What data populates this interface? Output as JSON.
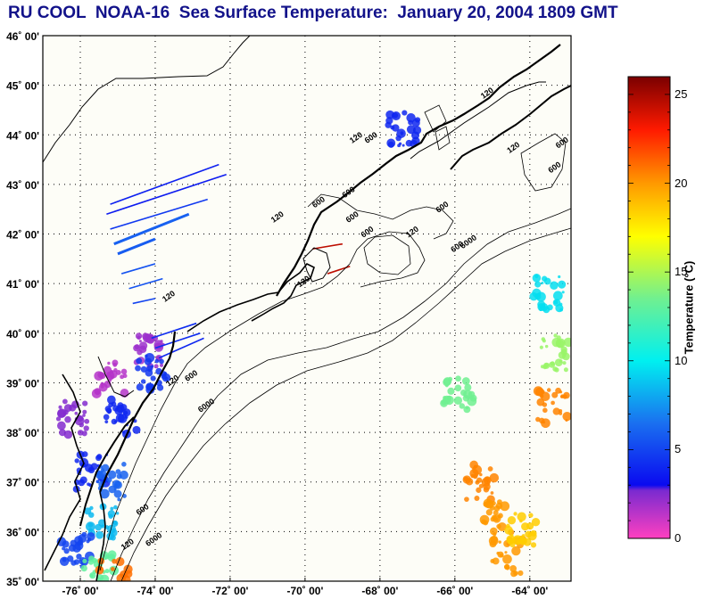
{
  "title": "RU COOL  NOAA-16  Sea Surface Temperature:  January 20, 2004 1809 GMT",
  "chart_data": {
    "type": "heatmap",
    "title": "RU COOL  NOAA-16  Sea Surface Temperature:  January 20, 2004 1809 GMT",
    "xlabel": "",
    "ylabel": "",
    "xlim": [
      -77.0,
      -62.9
    ],
    "ylim": [
      35,
      46
    ],
    "grid": true,
    "x_ticks": [
      {
        "value": -76,
        "label": "-76˚ 00'"
      },
      {
        "value": -74,
        "label": "-74˚ 00'"
      },
      {
        "value": -72,
        "label": "-72˚ 00'"
      },
      {
        "value": -70,
        "label": "-70˚ 00'"
      },
      {
        "value": -68,
        "label": "-68˚ 00'"
      },
      {
        "value": -66,
        "label": "-66˚ 00'"
      },
      {
        "value": -64,
        "label": "-64˚ 00'"
      }
    ],
    "y_ticks": [
      {
        "value": 46,
        "label": "46˚ 00'"
      },
      {
        "value": 45,
        "label": "45˚ 00'"
      },
      {
        "value": 44,
        "label": "44˚ 00'"
      },
      {
        "value": 43,
        "label": "43˚ 00'"
      },
      {
        "value": 42,
        "label": "42˚ 00'"
      },
      {
        "value": 41,
        "label": "41˚ 00'"
      },
      {
        "value": 40,
        "label": "40˚ 00'"
      },
      {
        "value": 39,
        "label": "39˚ 00'"
      },
      {
        "value": 38,
        "label": "38˚ 00'"
      },
      {
        "value": 37,
        "label": "37˚ 00'"
      },
      {
        "value": 36,
        "label": "36˚ 00'"
      },
      {
        "value": 35,
        "label": "35˚ 00'"
      }
    ],
    "colorbar": {
      "label": "Temperature (°C)",
      "range": [
        0,
        26
      ],
      "ticks": [
        {
          "value": 0,
          "label": "0"
        },
        {
          "value": 5,
          "label": "5"
        },
        {
          "value": 10,
          "label": "10"
        },
        {
          "value": 15,
          "label": "15"
        },
        {
          "value": 20,
          "label": "20"
        },
        {
          "value": 25,
          "label": "25"
        }
      ],
      "stops": [
        {
          "value": 0,
          "color": "#ff40c0"
        },
        {
          "value": 2.7,
          "color": "#7a2ad0"
        },
        {
          "value": 3.0,
          "color": "#0a0af0"
        },
        {
          "value": 6.5,
          "color": "#1a70f0"
        },
        {
          "value": 10,
          "color": "#00f0f0"
        },
        {
          "value": 13.5,
          "color": "#70f090"
        },
        {
          "value": 17,
          "color": "#ffff00"
        },
        {
          "value": 20,
          "color": "#ff9900"
        },
        {
          "value": 23,
          "color": "#ff1a00"
        },
        {
          "value": 26,
          "color": "#7a0000"
        }
      ]
    },
    "contour_labels": [
      {
        "lon": -73.6,
        "lat": 40.7,
        "text": "120"
      },
      {
        "lon": -73.5,
        "lat": 39.0,
        "text": "120"
      },
      {
        "lon": -73.0,
        "lat": 39.1,
        "text": "600"
      },
      {
        "lon": -72.6,
        "lat": 38.5,
        "text": "6000"
      },
      {
        "lon": -74.7,
        "lat": 35.7,
        "text": "120"
      },
      {
        "lon": -74.3,
        "lat": 36.4,
        "text": "600"
      },
      {
        "lon": -74.0,
        "lat": 35.8,
        "text": "6000"
      },
      {
        "lon": -70.0,
        "lat": 41.0,
        "text": "120"
      },
      {
        "lon": -70.7,
        "lat": 42.3,
        "text": "120"
      },
      {
        "lon": -69.6,
        "lat": 42.6,
        "text": "600"
      },
      {
        "lon": -68.8,
        "lat": 42.8,
        "text": "600"
      },
      {
        "lon": -68.7,
        "lat": 42.3,
        "text": "600"
      },
      {
        "lon": -68.3,
        "lat": 42.0,
        "text": "600"
      },
      {
        "lon": -68.2,
        "lat": 43.9,
        "text": "600"
      },
      {
        "lon": -68.6,
        "lat": 43.9,
        "text": "120"
      },
      {
        "lon": -67.1,
        "lat": 42.0,
        "text": "120"
      },
      {
        "lon": -66.3,
        "lat": 42.5,
        "text": "600"
      },
      {
        "lon": -65.9,
        "lat": 41.7,
        "text": "600"
      },
      {
        "lon": -65.6,
        "lat": 41.8,
        "text": "6000"
      },
      {
        "lon": -65.1,
        "lat": 44.8,
        "text": "120"
      },
      {
        "lon": -63.1,
        "lat": 43.8,
        "text": "600"
      },
      {
        "lon": -63.3,
        "lat": 43.3,
        "text": "600"
      },
      {
        "lon": -64.4,
        "lat": 43.7,
        "text": "120"
      }
    ],
    "sst_patches": [
      {
        "name": "delaware-bay",
        "lon": -75.2,
        "lat": 39.1,
        "temp": 1.5
      },
      {
        "name": "nj-coast",
        "lon": -74.1,
        "lat": 39.6,
        "temp": 2.0
      },
      {
        "name": "nj-shelf",
        "lon": -74.1,
        "lat": 39.2,
        "temp": 4.5
      },
      {
        "name": "chesapeake-upper",
        "lon": -76.2,
        "lat": 38.3,
        "temp": 2.5
      },
      {
        "name": "delmarva-shelf",
        "lon": -74.9,
        "lat": 38.3,
        "temp": 4.0
      },
      {
        "name": "chesapeake-mouth",
        "lon": -75.7,
        "lat": 37.2,
        "temp": 4.0
      },
      {
        "name": "va-shelf",
        "lon": -75.2,
        "lat": 37.0,
        "temp": 6.0
      },
      {
        "name": "nc-shelf",
        "lon": -75.4,
        "lat": 36.2,
        "temp": 8.5
      },
      {
        "name": "pamlico",
        "lon": -76.1,
        "lat": 35.6,
        "temp": 5.0
      },
      {
        "name": "hatteras",
        "lon": -75.5,
        "lat": 35.2,
        "temp": 13.0
      },
      {
        "name": "gulf-stream-edge",
        "lon": -75.1,
        "lat": 35.05,
        "temp": 21.0
      },
      {
        "name": "scotian-slope-cyan",
        "lon": -63.5,
        "lat": 40.8,
        "temp": 9.5
      },
      {
        "name": "slope-yellow-green",
        "lon": -63.3,
        "lat": 39.6,
        "temp": 14.5
      },
      {
        "name": "slope-green",
        "lon": -65.9,
        "lat": 38.8,
        "temp": 13.5
      },
      {
        "name": "slope-orange",
        "lon": -63.4,
        "lat": 38.5,
        "temp": 20.5
      },
      {
        "name": "gulf-stream-a",
        "lon": -65.3,
        "lat": 37.0,
        "temp": 20.5
      },
      {
        "name": "gulf-stream-b",
        "lon": -64.9,
        "lat": 36.3,
        "temp": 20.0
      },
      {
        "name": "gulf-stream-c",
        "lon": -64.6,
        "lat": 35.5,
        "temp": 20.0
      },
      {
        "name": "gulf-stream-d",
        "lon": -64.2,
        "lat": 36.0,
        "temp": 18.5
      },
      {
        "name": "bay-of-fundy",
        "lon": -67.4,
        "lat": 44.1,
        "temp": 4.0
      }
    ],
    "sst_swaths": [
      {
        "lon1": -75.2,
        "lat1": 42.6,
        "lon2": -72.3,
        "lat2": 43.4,
        "temp": 3.8
      },
      {
        "lon1": -75.3,
        "lat1": 42.4,
        "lon2": -72.1,
        "lat2": 43.2,
        "temp": 3.6
      },
      {
        "lon1": -75.2,
        "lat1": 42.1,
        "lon2": -72.6,
        "lat2": 42.7,
        "temp": 4.6
      },
      {
        "lon1": -75.1,
        "lat1": 41.8,
        "lon2": -73.1,
        "lat2": 42.4,
        "temp": 6.0
      },
      {
        "lon1": -75.0,
        "lat1": 41.6,
        "lon2": -74.0,
        "lat2": 41.9,
        "temp": 5.8
      },
      {
        "lon1": -74.9,
        "lat1": 41.2,
        "lon2": -74.0,
        "lat2": 41.4,
        "temp": 5.5
      },
      {
        "lon1": -74.7,
        "lat1": 40.9,
        "lon2": -73.8,
        "lat2": 41.1,
        "temp": 5.5
      },
      {
        "lon1": -74.6,
        "lat1": 40.6,
        "lon2": -74.0,
        "lat2": 40.7,
        "temp": 5.0
      },
      {
        "lon1": -74.1,
        "lat1": 39.9,
        "lon2": -72.9,
        "lat2": 40.2,
        "temp": 4.2
      },
      {
        "lon1": -74.0,
        "lat1": 39.7,
        "lon2": -72.8,
        "lat2": 40.0,
        "temp": 4.2
      },
      {
        "lon1": -73.9,
        "lat1": 39.5,
        "lon2": -72.7,
        "lat2": 39.9,
        "temp": 4.0
      },
      {
        "lon1": -69.4,
        "lat1": 41.2,
        "lon2": -68.8,
        "lat2": 41.35,
        "temp": 24.5
      },
      {
        "lon1": -69.8,
        "lat1": 41.7,
        "lon2": -69.0,
        "lat2": 41.8,
        "temp": 24.5
      }
    ]
  }
}
